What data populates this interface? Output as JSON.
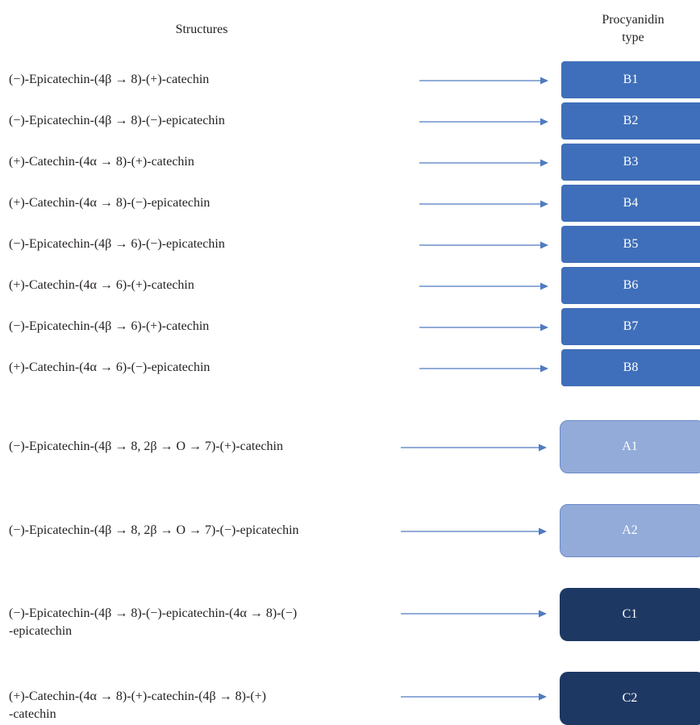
{
  "headers": {
    "structures": "Structures",
    "procyanidin_type": "Procyanidin\ntype"
  },
  "rows": [
    {
      "structure": "(−)-Epicatechin-(4β → 8)-(+)-catechin",
      "type": "B1",
      "group": "B"
    },
    {
      "structure": "(−)-Epicatechin-(4β → 8)-(−)-epicatechin",
      "type": "B2",
      "group": "B"
    },
    {
      "structure": "(+)-Catechin-(4α → 8)-(+)-catechin",
      "type": "B3",
      "group": "B"
    },
    {
      "structure": "(+)-Catechin-(4α → 8)-(−)-epicatechin",
      "type": "B4",
      "group": "B"
    },
    {
      "structure": "(−)-Epicatechin-(4β → 6)-(−)-epicatechin",
      "type": "B5",
      "group": "B"
    },
    {
      "structure": "(+)-Catechin-(4α → 6)-(+)-catechin",
      "type": "B6",
      "group": "B"
    },
    {
      "structure": "(−)-Epicatechin-(4β → 6)-(+)-catechin",
      "type": "B7",
      "group": "B"
    },
    {
      "structure": "(+)-Catechin-(4α → 6)-(−)-epicatechin",
      "type": "B8",
      "group": "B"
    },
    {
      "structure": "(−)-Epicatechin-(4β → 8, 2β → O → 7)-(+)-catechin",
      "type": "A1",
      "group": "A"
    },
    {
      "structure": "(−)-Epicatechin-(4β → 8, 2β → O → 7)-(−)-epicatechin",
      "type": "A2",
      "group": "A"
    },
    {
      "structure": "(−)-Epicatechin-(4β → 8)-(−)-epicatechin-(4α → 8)-(−)\n-epicatechin",
      "type": "C1",
      "group": "C"
    },
    {
      "structure": "(+)-Catechin-(4α → 8)-(+)-catechin-(4β → 8)-(+)\n-catechin",
      "type": "C2",
      "group": "C"
    }
  ],
  "colors": {
    "arrow": "#4f7bc0",
    "group_B": "#3f6fba",
    "group_A": "#92abd9",
    "group_A_border": "#6d8cc9",
    "group_C": "#1e3864"
  }
}
